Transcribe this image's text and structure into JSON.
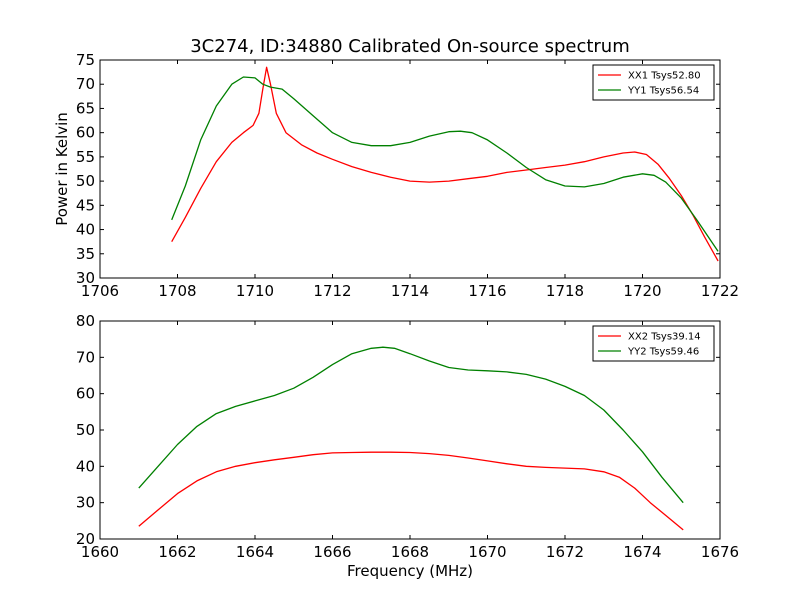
{
  "figure": {
    "title": "3C274, ID:34880 Calibrated On-source spectrum"
  },
  "colors": {
    "xx": "#ff0000",
    "yy": "#008000"
  },
  "chart_data": [
    {
      "type": "line",
      "title": "3C274, ID:34880 Calibrated On-source spectrum",
      "xlabel": "",
      "ylabel": "Power in Kelvin",
      "xlim": [
        1706,
        1722
      ],
      "ylim": [
        30,
        75
      ],
      "xticks": [
        "1706",
        "1708",
        "1710",
        "1712",
        "1714",
        "1716",
        "1718",
        "1720",
        "1722"
      ],
      "yticks": [
        "30",
        "35",
        "40",
        "45",
        "50",
        "55",
        "60",
        "65",
        "70",
        "75"
      ],
      "grid": false,
      "legend_position": "top-right",
      "series": [
        {
          "name": "XX1 Tsys52.80",
          "color": "#ff0000",
          "x": [
            1707.85,
            1708.2,
            1708.6,
            1709.0,
            1709.4,
            1709.7,
            1709.95,
            1710.1,
            1710.2,
            1710.3,
            1710.4,
            1710.55,
            1710.8,
            1711.2,
            1711.6,
            1712.0,
            1712.5,
            1713.0,
            1713.5,
            1714.0,
            1714.5,
            1715.0,
            1715.5,
            1716.0,
            1716.5,
            1717.0,
            1717.5,
            1718.0,
            1718.5,
            1719.0,
            1719.5,
            1719.8,
            1720.1,
            1720.4,
            1720.7,
            1721.0,
            1721.3,
            1721.6,
            1721.95
          ],
          "y": [
            37.5,
            42.5,
            48.5,
            54.0,
            58.0,
            60.0,
            61.5,
            64.0,
            69.0,
            73.5,
            70.0,
            64.0,
            60.0,
            57.5,
            55.8,
            54.5,
            53.0,
            51.8,
            50.8,
            50.0,
            49.8,
            50.0,
            50.5,
            51.0,
            51.8,
            52.3,
            52.8,
            53.3,
            54.0,
            55.0,
            55.8,
            56.0,
            55.5,
            53.5,
            50.5,
            47.0,
            43.0,
            38.5,
            33.5
          ]
        },
        {
          "name": "YY1 Tsys56.54",
          "color": "#008000",
          "x": [
            1707.85,
            1708.2,
            1708.6,
            1709.0,
            1709.4,
            1709.7,
            1710.0,
            1710.2,
            1710.4,
            1710.7,
            1711.0,
            1711.5,
            1712.0,
            1712.5,
            1713.0,
            1713.5,
            1714.0,
            1714.5,
            1715.0,
            1715.3,
            1715.6,
            1716.0,
            1716.5,
            1717.0,
            1717.5,
            1718.0,
            1718.5,
            1719.0,
            1719.5,
            1720.0,
            1720.3,
            1720.6,
            1721.0,
            1721.4,
            1721.95
          ],
          "y": [
            42.0,
            49.0,
            58.5,
            65.5,
            70.0,
            71.5,
            71.3,
            70.0,
            69.4,
            69.0,
            67.0,
            63.5,
            60.0,
            58.0,
            57.3,
            57.3,
            58.0,
            59.3,
            60.2,
            60.3,
            60.0,
            58.5,
            55.8,
            52.8,
            50.3,
            49.0,
            48.8,
            49.5,
            50.8,
            51.5,
            51.2,
            49.8,
            46.5,
            42.0,
            35.5
          ]
        }
      ]
    },
    {
      "type": "line",
      "title": "",
      "xlabel": "Frequency (MHz)",
      "ylabel": "",
      "xlim": [
        1660,
        1676
      ],
      "ylim": [
        20,
        80
      ],
      "xticks": [
        "1660",
        "1662",
        "1664",
        "1666",
        "1668",
        "1670",
        "1672",
        "1674",
        "1676"
      ],
      "yticks": [
        "20",
        "30",
        "40",
        "50",
        "60",
        "70",
        "80"
      ],
      "grid": false,
      "legend_position": "top-right",
      "series": [
        {
          "name": "XX2 Tsys39.14",
          "color": "#ff0000",
          "x": [
            1661.0,
            1661.5,
            1662.0,
            1662.5,
            1663.0,
            1663.5,
            1664.0,
            1664.5,
            1665.0,
            1665.5,
            1666.0,
            1666.5,
            1667.0,
            1667.5,
            1668.0,
            1668.5,
            1669.0,
            1669.5,
            1670.0,
            1670.5,
            1671.0,
            1671.5,
            1672.0,
            1672.5,
            1673.0,
            1673.4,
            1673.8,
            1674.2,
            1674.6,
            1675.05
          ],
          "y": [
            23.5,
            28.0,
            32.5,
            36.0,
            38.5,
            40.0,
            41.0,
            41.8,
            42.5,
            43.2,
            43.7,
            43.8,
            43.9,
            43.9,
            43.8,
            43.5,
            43.0,
            42.3,
            41.5,
            40.7,
            40.0,
            39.7,
            39.5,
            39.3,
            38.5,
            37.0,
            34.0,
            30.0,
            26.5,
            22.5
          ]
        },
        {
          "name": "YY2 Tsys59.46",
          "color": "#008000",
          "x": [
            1661.0,
            1661.5,
            1662.0,
            1662.5,
            1663.0,
            1663.5,
            1664.0,
            1664.5,
            1665.0,
            1665.5,
            1666.0,
            1666.5,
            1667.0,
            1667.3,
            1667.6,
            1668.0,
            1668.5,
            1669.0,
            1669.5,
            1670.0,
            1670.5,
            1671.0,
            1671.5,
            1672.0,
            1672.5,
            1673.0,
            1673.5,
            1674.0,
            1674.5,
            1675.05
          ],
          "y": [
            34.0,
            40.0,
            46.0,
            51.0,
            54.5,
            56.5,
            58.0,
            59.5,
            61.5,
            64.5,
            68.0,
            71.0,
            72.5,
            72.8,
            72.5,
            71.0,
            69.0,
            67.2,
            66.5,
            66.3,
            66.0,
            65.3,
            64.0,
            62.0,
            59.5,
            55.5,
            50.0,
            44.0,
            37.0,
            30.0
          ]
        }
      ]
    }
  ]
}
